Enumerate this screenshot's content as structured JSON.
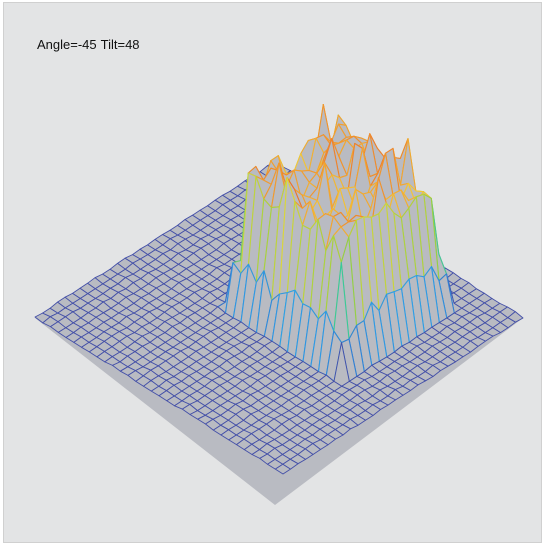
{
  "view": {
    "angle_label": "Angle=-45",
    "tilt_label": "Tilt=48"
  },
  "colors": {
    "background": "#e3e4e5",
    "surface_fill": "#b9bbc2",
    "base_mesh": "#4450a8",
    "colormap": [
      "#3b4bb0",
      "#2f9ee6",
      "#35c8a0",
      "#9ad040",
      "#f4d83a",
      "#f19a2e",
      "#e2322a"
    ]
  },
  "chart_data": {
    "type": "surface-3d",
    "title": "",
    "view_angle_deg": -45,
    "view_tilt_deg": 48,
    "grid_size": [
      32,
      32
    ],
    "z_range": [
      0,
      1
    ],
    "plateau": {
      "x_range_cells": [
        13,
        25
      ],
      "y_range_cells": [
        5,
        17
      ],
      "mean_height": 0.82,
      "peak_height": 1.0,
      "base_height": 0.0
    },
    "colormap": "jet"
  }
}
